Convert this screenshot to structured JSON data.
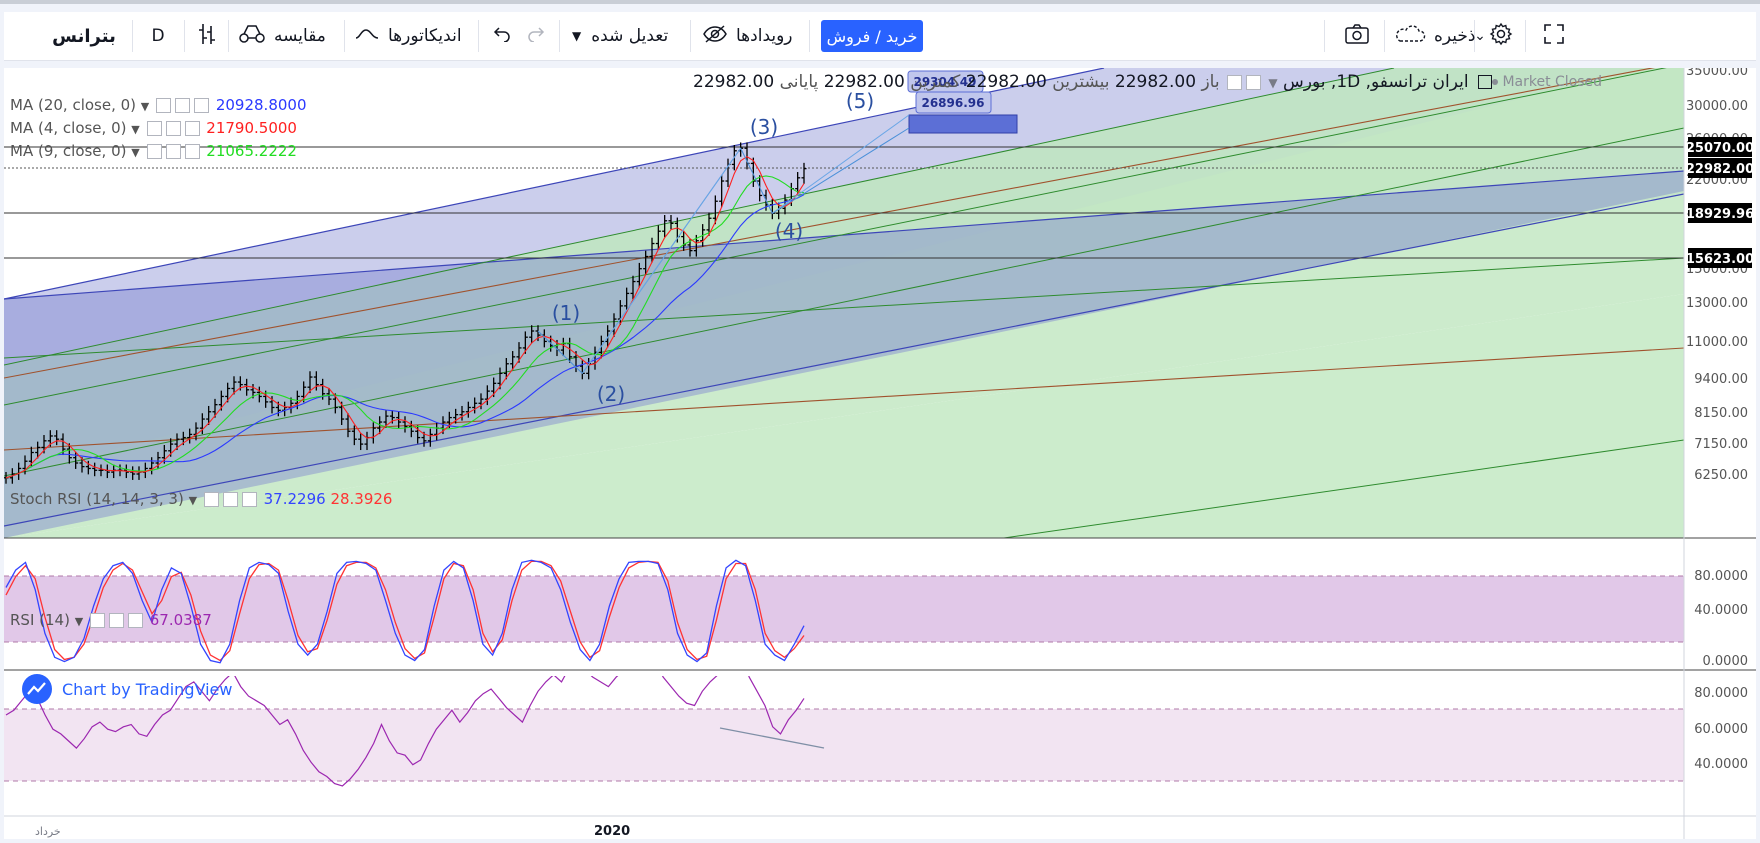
{
  "toolbar": {
    "symbol": "بترانس",
    "interval": "D",
    "compare": "مقایسه",
    "indicators": "اندیکاتورها",
    "adjusted": "تعدیل شده",
    "events": "رویدادها",
    "buy_sell": "خرید / فروش",
    "save": "ذخیره"
  },
  "legend": {
    "title": "ایران ترانسفو, 1D, بورس",
    "open_label": "باز",
    "open": "22982.00",
    "high_label": "بیشترین",
    "high": "22982.00",
    "low_label": "کمترین",
    "low": "22982.00",
    "close_label": "پایانی",
    "close": "22982.00",
    "market_status": "Market Closed",
    "ma20_label": "MA (20, close, 0)",
    "ma20_value": "20928.8000",
    "ma4_label": "MA (4, close, 0)",
    "ma4_value": "21790.5000",
    "ma9_label": "MA (9, close, 0)",
    "ma9_value": "21065.2222",
    "stoch_label": "Stoch RSI (14, 14, 3, 3)",
    "stoch_k": "37.2296",
    "stoch_d": "28.3926",
    "rsi_label": "RSI (14)",
    "rsi_value": "67.0387"
  },
  "colors": {
    "ma20": "#2b39ff",
    "ma4": "#ff2020",
    "ma9": "#22dd22",
    "stoch_k": "#3344ff",
    "stoch_d": "#ff3333",
    "rsi": "#9c27b0",
    "accent": "#2962ff"
  },
  "price_axis": {
    "ticks": [
      "35000.00",
      "30000.00",
      "26000.00",
      "22000.00",
      "18000.00",
      "15000.00",
      "13000.00",
      "11000.00",
      "9400.00",
      "8150.00",
      "7150.00",
      "6250.00"
    ],
    "labels": [
      "25070.00",
      "22982.00",
      "18929.96",
      "15623.00"
    ]
  },
  "stoch_axis": [
    "80.0000",
    "40.0000",
    "0.0000"
  ],
  "rsi_axis": [
    "80.0000",
    "60.0000",
    "40.0000"
  ],
  "time_axis": [
    "خرداد",
    "2020"
  ],
  "waves": [
    "(1)",
    "(2)",
    "(3)",
    "(4)",
    "(5)"
  ],
  "targets": [
    "29304.49",
    "26896.96"
  ],
  "watermark": "Chart by TradingView",
  "chart_data": {
    "type": "line",
    "scale": "log",
    "ylim": [
      6000,
      36000
    ],
    "horizontal_levels": [
      25070,
      22982,
      18929.96,
      15623
    ],
    "price": [
      6150,
      6250,
      6400,
      6600,
      6850,
      7000,
      7200,
      7350,
      7250,
      6950,
      6700,
      6550,
      6450,
      6400,
      6350,
      6350,
      6300,
      6350,
      6350,
      6300,
      6250,
      6300,
      6400,
      6550,
      6700,
      6900,
      7100,
      7250,
      7300,
      7400,
      7600,
      7900,
      8150,
      8400,
      8700,
      9000,
      9250,
      9150,
      8950,
      8850,
      8700,
      8500,
      8300,
      8200,
      8300,
      8450,
      8700,
      9050,
      9450,
      9150,
      8800,
      8600,
      8300,
      7900,
      7500,
      7250,
      7100,
      7300,
      7600,
      7800,
      8000,
      7950,
      7800,
      7650,
      7500,
      7300,
      7200,
      7400,
      7600,
      7800,
      7950,
      8050,
      8150,
      8300,
      8450,
      8600,
      8900,
      9200,
      9600,
      10000,
      10300,
      10700,
      11200,
      11500,
      11300,
      11000,
      10800,
      10600,
      10900,
      10300,
      9900,
      9600,
      10000,
      10500,
      11000,
      11500,
      12100,
      12800,
      13500,
      14200,
      15000,
      15800,
      16700,
      17600,
      18400,
      18200,
      17200,
      16600,
      16200,
      16900,
      17700,
      18600,
      20000,
      21800,
      23400,
      24800,
      25070,
      23500,
      21800,
      20500,
      19700,
      19000,
      19400,
      20100,
      21100,
      22100,
      22982
    ],
    "rsi": [
      60,
      62,
      66,
      70,
      67,
      60,
      54,
      52,
      49,
      46,
      50,
      55,
      57,
      54,
      53,
      55,
      56,
      52,
      51,
      56,
      60,
      62,
      67,
      72,
      74,
      70,
      66,
      71,
      75,
      78,
      72,
      68,
      66,
      64,
      60,
      56,
      58,
      52,
      45,
      40,
      36,
      34,
      31,
      30,
      33,
      37,
      42,
      48,
      56,
      49,
      44,
      43,
      39,
      41,
      48,
      54,
      58,
      62,
      57,
      61,
      66,
      69,
      71,
      67,
      63,
      60,
      57,
      64,
      70,
      74,
      77,
      74,
      80,
      82,
      79,
      76,
      74,
      72,
      76,
      79,
      82,
      84,
      88,
      82,
      76,
      72,
      68,
      65,
      64,
      70,
      74,
      77,
      80,
      81,
      85,
      76,
      70,
      64,
      55,
      52,
      58,
      62,
      67
    ],
    "stoch_k": [
      72,
      88,
      95,
      70,
      30,
      8,
      4,
      8,
      25,
      55,
      80,
      92,
      95,
      85,
      60,
      40,
      70,
      90,
      85,
      55,
      20,
      5,
      3,
      20,
      60,
      90,
      95,
      93,
      85,
      50,
      20,
      10,
      20,
      50,
      85,
      95,
      96,
      94,
      88,
      60,
      30,
      10,
      5,
      15,
      55,
      88,
      96,
      90,
      60,
      20,
      10,
      30,
      70,
      95,
      97,
      95,
      90,
      70,
      40,
      15,
      5,
      20,
      55,
      80,
      95,
      96,
      96,
      94,
      70,
      30,
      10,
      4,
      12,
      55,
      90,
      97,
      92,
      60,
      20,
      10,
      5,
      20,
      37
    ],
    "stoch_d": [
      65,
      82,
      92,
      80,
      45,
      15,
      6,
      8,
      20,
      45,
      72,
      88,
      94,
      88,
      68,
      48,
      60,
      82,
      86,
      65,
      32,
      10,
      5,
      14,
      48,
      80,
      93,
      94,
      88,
      60,
      28,
      13,
      16,
      42,
      75,
      92,
      95,
      95,
      90,
      70,
      40,
      16,
      7,
      12,
      45,
      80,
      94,
      92,
      70,
      30,
      13,
      24,
      60,
      88,
      96,
      96,
      92,
      78,
      50,
      22,
      8,
      14,
      45,
      72,
      90,
      95,
      96,
      95,
      78,
      40,
      15,
      6,
      9,
      42,
      80,
      94,
      94,
      70,
      30,
      14,
      8,
      16,
      28
    ]
  }
}
